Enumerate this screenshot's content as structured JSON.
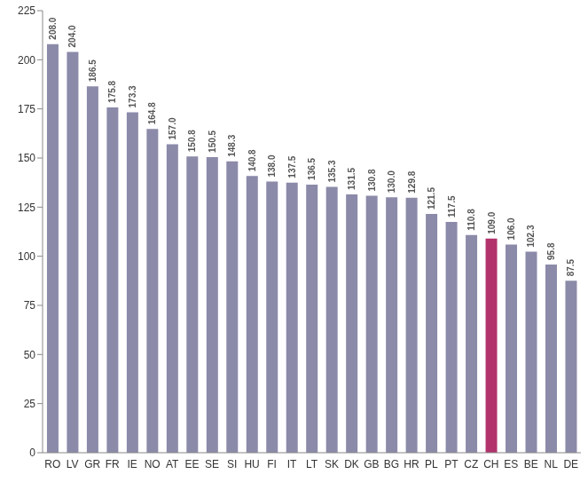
{
  "chart_data": {
    "type": "bar",
    "categories": [
      "RO",
      "LV",
      "GR",
      "FR",
      "IE",
      "NO",
      "AT",
      "EE",
      "SE",
      "SI",
      "HU",
      "FI",
      "IT",
      "LT",
      "SK",
      "DK",
      "GB",
      "BG",
      "HR",
      "PL",
      "PT",
      "CZ",
      "CH",
      "ES",
      "BE",
      "NL",
      "DE"
    ],
    "values": [
      208.0,
      204.0,
      186.5,
      175.8,
      173.3,
      164.8,
      157.0,
      150.8,
      150.5,
      148.3,
      140.8,
      138.0,
      137.5,
      136.5,
      135.3,
      131.5,
      130.8,
      130.0,
      129.8,
      121.5,
      117.5,
      110.8,
      109.0,
      106.0,
      102.3,
      95.8,
      87.5
    ],
    "value_labels": [
      "208.0",
      "204.0",
      "186.5",
      "175.8",
      "173.3",
      "164.8",
      "157.0",
      "150.8",
      "150.5",
      "148.3",
      "140.8",
      "138.0",
      "137.5",
      "136.5",
      "135.3",
      "131.5",
      "130.8",
      "130.0",
      "129.8",
      "121.5",
      "117.5",
      "110.8",
      "109.0",
      "106.0",
      "102.3",
      "95.8",
      "87.5"
    ],
    "colors": [
      "#8b8aa9",
      "#8b8aa9",
      "#8b8aa9",
      "#8b8aa9",
      "#8b8aa9",
      "#8b8aa9",
      "#8b8aa9",
      "#8b8aa9",
      "#8b8aa9",
      "#8b8aa9",
      "#8b8aa9",
      "#8b8aa9",
      "#8b8aa9",
      "#8b8aa9",
      "#8b8aa9",
      "#8b8aa9",
      "#8b8aa9",
      "#8b8aa9",
      "#8b8aa9",
      "#8b8aa9",
      "#8b8aa9",
      "#8b8aa9",
      "#b2336c",
      "#8b8aa9",
      "#8b8aa9",
      "#8b8aa9",
      "#8b8aa9"
    ],
    "ylim": [
      0,
      225
    ],
    "yticks": [
      0,
      25,
      50,
      75,
      100,
      125,
      150,
      175,
      200,
      225
    ],
    "grid": false,
    "data_labels": true
  }
}
